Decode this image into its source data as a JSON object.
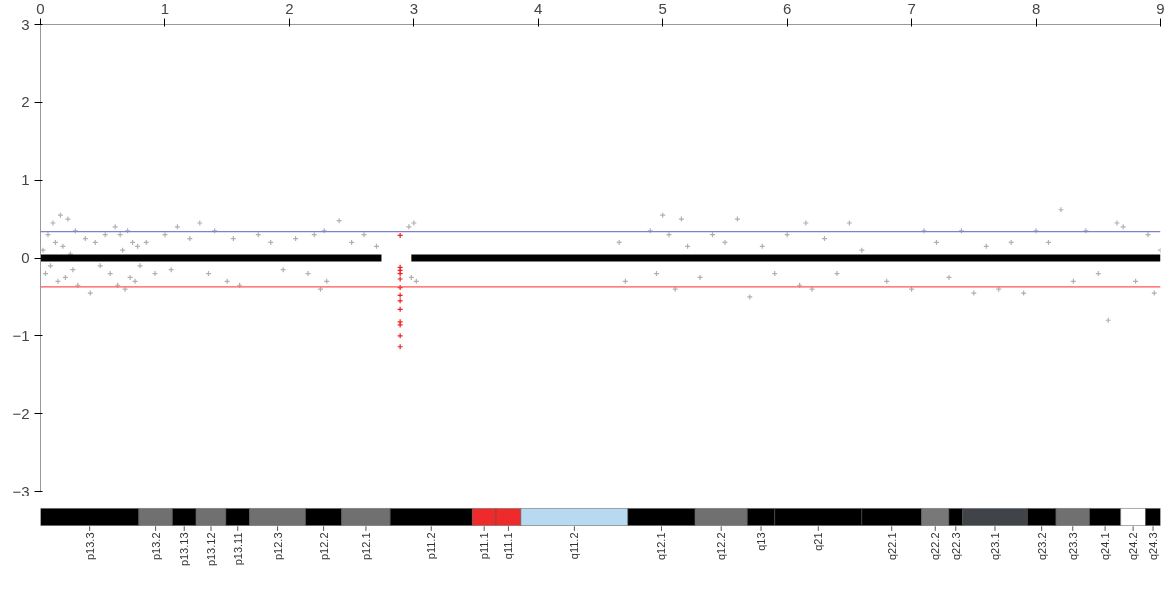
{
  "chart_data": [
    {
      "type": "scatter",
      "xlim": [
        0,
        9
      ],
      "ylim": [
        -3,
        3
      ],
      "xticks": [
        0,
        1,
        2,
        3,
        4,
        5,
        6,
        7,
        8,
        9
      ],
      "yticks": [
        -3,
        -2,
        -1,
        0,
        1,
        2,
        3
      ],
      "marker": "cross",
      "series": [
        {
          "color": "#b0b0b0",
          "x": [
            0.02,
            0.04,
            0.06,
            0.08,
            0.1,
            0.12,
            0.14,
            0.16,
            0.18,
            0.2,
            0.22,
            0.24,
            0.26,
            0.28,
            0.3,
            0.36,
            0.4,
            0.44,
            0.48,
            0.52,
            0.56,
            0.6,
            0.62,
            0.64,
            0.66,
            0.68,
            0.7,
            0.72,
            0.74,
            0.76,
            0.78,
            0.8,
            0.85,
            0.92,
            1.0,
            1.05,
            1.1,
            1.2,
            1.28,
            1.35,
            1.4,
            1.5,
            1.55,
            1.6,
            1.75,
            1.85,
            1.95,
            2.05,
            2.15,
            2.2,
            2.25,
            2.28,
            2.3,
            2.4,
            2.5,
            2.6,
            2.7,
            2.96,
            2.98,
            3.0,
            3.02,
            4.65,
            4.7,
            4.9,
            4.95,
            5.0,
            5.05,
            5.1,
            5.15,
            5.2,
            5.3,
            5.4,
            5.5,
            5.6,
            5.7,
            5.8,
            5.9,
            6.0,
            6.1,
            6.15,
            6.2,
            6.3,
            6.4,
            6.5,
            6.6,
            6.8,
            7.0,
            7.1,
            7.2,
            7.3,
            7.4,
            7.5,
            7.6,
            7.7,
            7.8,
            7.9,
            8.0,
            8.1,
            8.2,
            8.3,
            8.4,
            8.5,
            8.58,
            8.65,
            8.7,
            8.8,
            8.9,
            8.95,
            9.0
          ],
          "values": [
            0.1,
            -0.2,
            0.3,
            -0.1,
            0.45,
            0.2,
            -0.3,
            0.55,
            0.15,
            -0.25,
            0.5,
            0.05,
            -0.15,
            0.35,
            -0.35,
            0.25,
            -0.45,
            0.2,
            -0.1,
            0.3,
            -0.2,
            0.4,
            -0.35,
            0.3,
            0.1,
            -0.4,
            0.35,
            -0.25,
            0.2,
            -0.3,
            0.15,
            -0.1,
            0.2,
            -0.2,
            0.3,
            -0.15,
            0.4,
            0.25,
            0.45,
            -0.2,
            0.35,
            -0.3,
            0.25,
            -0.35,
            0.3,
            0.2,
            -0.15,
            0.25,
            -0.2,
            0.3,
            -0.4,
            0.35,
            -0.3,
            0.48,
            0.2,
            0.3,
            0.15,
            0.4,
            -0.25,
            0.45,
            -0.3,
            0.2,
            -0.3,
            0.35,
            -0.2,
            0.55,
            0.3,
            -0.4,
            0.5,
            0.15,
            -0.25,
            0.3,
            0.2,
            0.5,
            -0.5,
            0.15,
            -0.2,
            0.3,
            -0.35,
            0.45,
            -0.4,
            0.25,
            -0.2,
            0.45,
            0.1,
            -0.3,
            -0.4,
            0.35,
            0.2,
            -0.25,
            0.35,
            -0.45,
            0.15,
            -0.4,
            0.2,
            -0.45,
            0.35,
            0.2,
            0.62,
            -0.3,
            0.35,
            -0.2,
            -0.8,
            0.45,
            0.4,
            -0.3,
            0.3,
            -0.45,
            0.1
          ]
        },
        {
          "color": "#ee2222",
          "x": [
            2.89,
            2.89,
            2.89,
            2.89,
            2.89,
            2.89,
            2.89,
            2.89,
            2.89,
            2.89,
            2.89,
            2.89,
            2.89
          ],
          "values": [
            0.29,
            -0.12,
            -0.16,
            -0.2,
            -0.27,
            -0.38,
            -0.48,
            -0.55,
            -0.66,
            -0.82,
            -0.86,
            -1.0,
            -1.14
          ]
        },
        {
          "type": "line",
          "marker": "none",
          "color": "#000000",
          "x": [
            0,
            2.74,
            2.75,
            2.98,
            9
          ],
          "values": [
            0,
            0,
            null,
            0,
            0
          ]
        }
      ],
      "ref_lines": [
        {
          "axis": "y",
          "value": 0.34,
          "color": "#8080d0"
        },
        {
          "axis": "y",
          "value": -0.37,
          "color": "#ff5555"
        }
      ]
    },
    {
      "type": "bar",
      "orientation": "horizontal",
      "stacked": true,
      "categories": [
        null
      ],
      "xlim": [
        0,
        9
      ],
      "tick_labels": false,
      "legend": "bottom",
      "series": [
        {
          "name": "p13.3",
          "color": "#000000",
          "values": [
            0.79
          ]
        },
        {
          "name": "p13.2",
          "color": "#707070",
          "values": [
            0.27
          ]
        },
        {
          "name": "p13.13",
          "color": "#000000",
          "values": [
            0.19
          ]
        },
        {
          "name": "p13.12",
          "color": "#707070",
          "values": [
            0.24
          ]
        },
        {
          "name": "p13.11",
          "color": "#000000",
          "values": [
            0.19
          ]
        },
        {
          "name": "p12.3",
          "color": "#707070",
          "values": [
            0.45
          ]
        },
        {
          "name": "p12.2",
          "color": "#000000",
          "values": [
            0.29
          ]
        },
        {
          "name": "p12.1",
          "color": "#707070",
          "values": [
            0.39
          ]
        },
        {
          "name": "p11.2",
          "color": "#000000",
          "values": [
            0.66
          ]
        },
        {
          "name": "p11.1",
          "color": "#ee2a2a",
          "values": [
            0.19
          ]
        },
        {
          "name": "q11.1",
          "color": "#ee2a2a",
          "values": [
            0.2
          ]
        },
        {
          "name": "q11.2",
          "color": "#b8daf0",
          "values": [
            0.86
          ]
        },
        {
          "name": "q12.1",
          "color": "#000000",
          "values": [
            0.54
          ]
        },
        {
          "name": "q12.2",
          "color": "#707070",
          "values": [
            0.42
          ]
        },
        {
          "name": "q13",
          "color": "#000000",
          "values": [
            0.22
          ]
        },
        {
          "name": "q21",
          "color": "#000000",
          "values": [
            0.7
          ]
        },
        {
          "name": "q22.1",
          "color": "#000000",
          "values": [
            0.48
          ]
        },
        {
          "name": "q22.2",
          "color": "#787878",
          "values": [
            0.22
          ]
        },
        {
          "name": "q22.3",
          "color": "#000000",
          "values": [
            0.11
          ]
        },
        {
          "name": "q23.1",
          "color": "#404448",
          "values": [
            0.52
          ]
        },
        {
          "name": "q23.2",
          "color": "#000000",
          "values": [
            0.23
          ]
        },
        {
          "name": "q23.3",
          "color": "#707070",
          "values": [
            0.27
          ]
        },
        {
          "name": "q24.1",
          "color": "#000000",
          "values": [
            0.25
          ]
        },
        {
          "name": "q24.2",
          "color": "#ffffff",
          "values": [
            0.2
          ]
        },
        {
          "name": "q24.3",
          "color": "#000000",
          "values": [
            0.12
          ]
        }
      ]
    }
  ]
}
